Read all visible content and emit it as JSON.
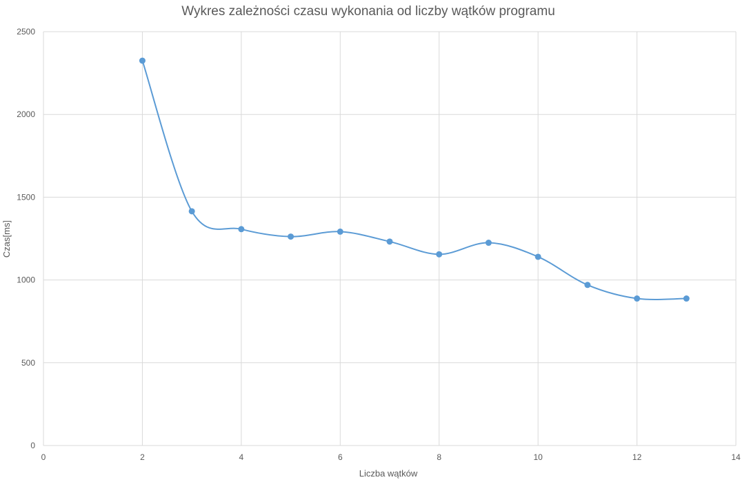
{
  "chart_data": {
    "type": "scatter",
    "title": "Wykres zależności czasu wykonania od liczby wątków programu",
    "xlabel": "Liczba wątków",
    "ylabel": "Czas[ms]",
    "xlim": [
      0,
      14
    ],
    "ylim": [
      0,
      2500
    ],
    "x_ticks": [
      "0",
      "2",
      "4",
      "6",
      "8",
      "10",
      "12",
      "14"
    ],
    "y_ticks": [
      "0",
      "500",
      "1000",
      "1500",
      "2000",
      "2500"
    ],
    "grid": true,
    "smoothed_line": true,
    "series": [
      {
        "color": "#5b9bd5",
        "x": [
          2,
          3,
          4,
          5,
          6,
          7,
          8,
          9,
          10,
          11,
          12,
          13
        ],
        "y": [
          2325,
          1415,
          1307,
          1262,
          1292,
          1232,
          1155,
          1225,
          1140,
          970,
          888,
          888
        ]
      }
    ]
  }
}
